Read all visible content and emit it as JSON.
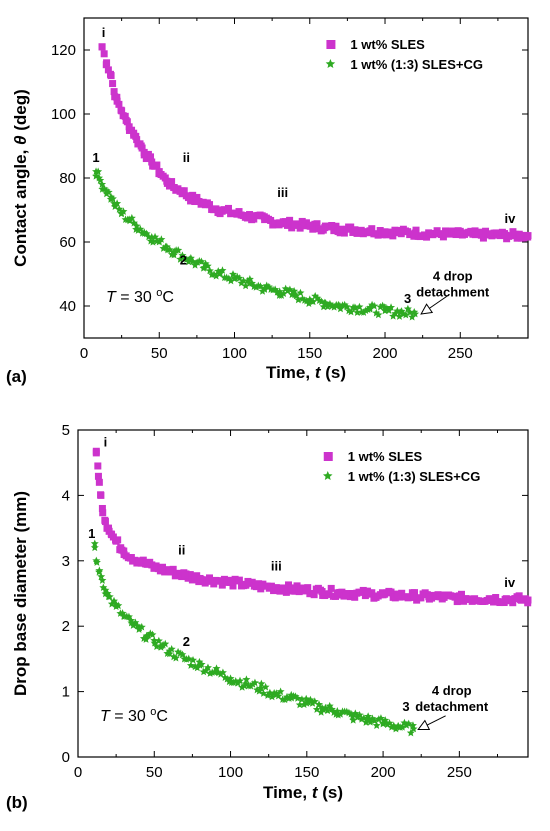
{
  "colors": {
    "series_a": "#cc33cc",
    "series_b": "#2eaa22",
    "axis": "#000000"
  },
  "chart_data": [
    {
      "type": "scatter",
      "panel_label": "(a)",
      "xlabel": "Time, t (s)",
      "xlabel_parts": [
        "Time, ",
        "t",
        " (s)"
      ],
      "ylabel": "Contact angle, θ (deg)",
      "ylabel_parts": [
        "Contact angle, ",
        "θ",
        " (deg)"
      ],
      "xlim": [
        0,
        295
      ],
      "ylim": [
        30,
        130
      ],
      "xticks": [
        0,
        50,
        100,
        150,
        200,
        250
      ],
      "yticks": [
        40,
        60,
        80,
        100,
        120
      ],
      "grid": false,
      "legend_position": "top-right",
      "series": [
        {
          "name": "1 wt% SLES",
          "marker": "square",
          "color": "#cc33cc",
          "x": [
            12,
            15,
            18,
            20,
            22,
            25,
            28,
            30,
            33,
            35,
            38,
            40,
            45,
            50,
            55,
            60,
            65,
            70,
            75,
            80,
            90,
            100,
            110,
            120,
            130,
            140,
            150,
            160,
            170,
            180,
            190,
            200,
            210,
            220,
            230,
            240,
            250,
            260,
            270,
            280,
            290,
            295
          ],
          "y": [
            121,
            116,
            112,
            107,
            104,
            101,
            98,
            96,
            94,
            92,
            90,
            88,
            85,
            82,
            79,
            77,
            76,
            74,
            73,
            72,
            70,
            69,
            68,
            67,
            66,
            65.5,
            65,
            64.5,
            64,
            63.8,
            63.5,
            63.2,
            63,
            62.8,
            62.6,
            62.5,
            62.4,
            62.3,
            62.2,
            62.1,
            62,
            62
          ]
        },
        {
          "name": "1 wt% (1:3) SLES+CG",
          "marker": "star",
          "color": "#2eaa22",
          "x": [
            8,
            10,
            12,
            15,
            18,
            20,
            25,
            30,
            35,
            40,
            45,
            50,
            55,
            60,
            70,
            80,
            90,
            100,
            110,
            120,
            130,
            140,
            150,
            160,
            170,
            180,
            190,
            200,
            210,
            220
          ],
          "y": [
            82,
            80,
            78,
            76,
            74,
            72,
            69,
            67,
            65,
            63,
            61.5,
            60,
            58.5,
            57,
            54.5,
            52,
            50,
            48.5,
            47,
            45.5,
            44.5,
            43.5,
            42,
            41,
            40,
            39.5,
            39,
            38.5,
            38,
            37.5
          ]
        }
      ],
      "annotations": [
        {
          "text": "i",
          "x": 13,
          "y": 124
        },
        {
          "text": "ii",
          "x": 68,
          "y": 85
        },
        {
          "text": "iii",
          "x": 132,
          "y": 74
        },
        {
          "text": "iv",
          "x": 283,
          "y": 66
        },
        {
          "text": "1",
          "x": 8,
          "y": 85
        },
        {
          "text": "2",
          "x": 66,
          "y": 53
        },
        {
          "text": "3",
          "x": 215,
          "y": 41
        },
        {
          "text": "4 drop",
          "x": 245,
          "y": 48
        },
        {
          "text": "detachment",
          "x": 245,
          "y": 43
        }
      ],
      "arrow": {
        "from": [
          241,
          43
        ],
        "to": [
          224,
          37.5
        ]
      },
      "temperature_label": [
        "T",
        " = 30 ",
        "o",
        "C"
      ]
    },
    {
      "type": "scatter",
      "panel_label": "(b)",
      "xlabel": "Time, t (s)",
      "xlabel_parts": [
        "Time, ",
        "t",
        " (s)"
      ],
      "ylabel": "Drop base diameter (mm)",
      "ylabel_parts": [
        "Drop base diameter (mm)"
      ],
      "xlim": [
        0,
        295
      ],
      "ylim": [
        0,
        5
      ],
      "xticks": [
        0,
        50,
        100,
        150,
        200,
        250
      ],
      "yticks": [
        0,
        1,
        2,
        3,
        4,
        5
      ],
      "grid": false,
      "legend_position": "top-right",
      "series": [
        {
          "name": "1 wt% SLES",
          "marker": "square",
          "color": "#cc33cc",
          "x": [
            12,
            13,
            14,
            15,
            16,
            18,
            20,
            22,
            25,
            28,
            30,
            35,
            40,
            45,
            50,
            55,
            60,
            70,
            80,
            90,
            100,
            110,
            120,
            130,
            140,
            150,
            160,
            170,
            180,
            190,
            200,
            210,
            220,
            230,
            240,
            250,
            260,
            270,
            280,
            290,
            295
          ],
          "y": [
            4.65,
            4.45,
            4.2,
            4.0,
            3.8,
            3.6,
            3.5,
            3.4,
            3.3,
            3.2,
            3.15,
            3.05,
            3.0,
            2.95,
            2.9,
            2.87,
            2.84,
            2.78,
            2.73,
            2.7,
            2.67,
            2.64,
            2.61,
            2.59,
            2.57,
            2.55,
            2.53,
            2.51,
            2.5,
            2.49,
            2.48,
            2.47,
            2.46,
            2.45,
            2.44,
            2.43,
            2.42,
            2.42,
            2.41,
            2.41,
            2.4
          ]
        },
        {
          "name": "1 wt% (1:3) SLES+CG",
          "marker": "star",
          "color": "#2eaa22",
          "x": [
            11,
            12,
            14,
            16,
            18,
            20,
            25,
            30,
            35,
            40,
            45,
            50,
            55,
            60,
            70,
            80,
            90,
            100,
            110,
            120,
            130,
            140,
            150,
            160,
            170,
            180,
            190,
            200,
            210,
            220
          ],
          "y": [
            3.2,
            3.0,
            2.85,
            2.7,
            2.55,
            2.45,
            2.3,
            2.15,
            2.05,
            1.95,
            1.85,
            1.78,
            1.7,
            1.62,
            1.5,
            1.4,
            1.3,
            1.2,
            1.12,
            1.05,
            0.95,
            0.9,
            0.82,
            0.75,
            0.7,
            0.62,
            0.57,
            0.52,
            0.47,
            0.43
          ]
        }
      ],
      "annotations": [
        {
          "text": "i",
          "x": 18,
          "y": 4.75
        },
        {
          "text": "ii",
          "x": 68,
          "y": 3.1
        },
        {
          "text": "iii",
          "x": 130,
          "y": 2.85
        },
        {
          "text": "iv",
          "x": 283,
          "y": 2.6
        },
        {
          "text": "1",
          "x": 9,
          "y": 3.35
        },
        {
          "text": "2",
          "x": 71,
          "y": 1.7
        },
        {
          "text": "3",
          "x": 215,
          "y": 0.7
        },
        {
          "text": "4 drop",
          "x": 245,
          "y": 0.95
        },
        {
          "text": "detachment",
          "x": 245,
          "y": 0.7
        }
      ],
      "arrow": {
        "from": [
          241,
          0.63
        ],
        "to": [
          223,
          0.42
        ]
      },
      "temperature_label": [
        "T",
        " = 30 ",
        "o",
        "C"
      ]
    }
  ]
}
